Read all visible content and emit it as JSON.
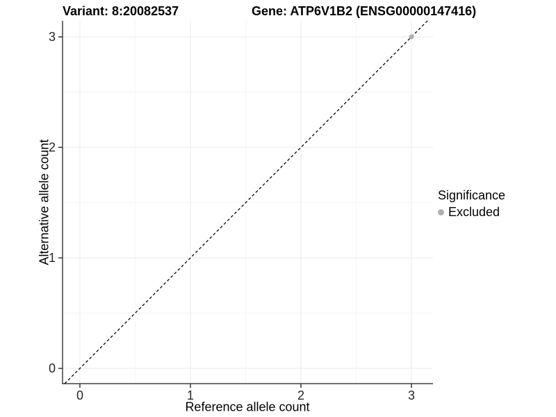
{
  "header": {
    "variant_title": "Variant: 8:20082537",
    "gene_title": "Gene: ATP6V1B2 (ENSG00000147416)"
  },
  "chart_data": {
    "type": "scatter",
    "title": "Variant: 8:20082537   Gene: ATP6V1B2 (ENSG00000147416)",
    "xlabel": "Reference allele count",
    "ylabel": "Alternative allele count",
    "x_ticks": [
      0,
      1,
      2,
      3
    ],
    "y_ticks": [
      0,
      1,
      2,
      3
    ],
    "x_minor": [
      0.5,
      1.5,
      2.5
    ],
    "y_minor": [
      0.5,
      1.5,
      2.5
    ],
    "xlim": [
      -0.157,
      3.195
    ],
    "ylim": [
      -0.138,
      3.145
    ],
    "grid": true,
    "series": [
      {
        "name": "Excluded",
        "color": "#b0b0b0",
        "points": [
          {
            "x": 3,
            "y": 3
          }
        ]
      }
    ],
    "reference_line": {
      "type": "identity",
      "style": "dashed",
      "color": "#000000"
    },
    "legend": {
      "title": "Significance",
      "position": "right",
      "entries": [
        {
          "label": "Excluded",
          "color": "#b0b0b0"
        }
      ]
    },
    "colors": {
      "panel_background": "#ffffff",
      "grid_major": "#ebebeb",
      "grid_minor": "#f5f5f5",
      "axis_line": "#404040",
      "tick_mark": "#333333",
      "tick_label": "#262626"
    }
  }
}
